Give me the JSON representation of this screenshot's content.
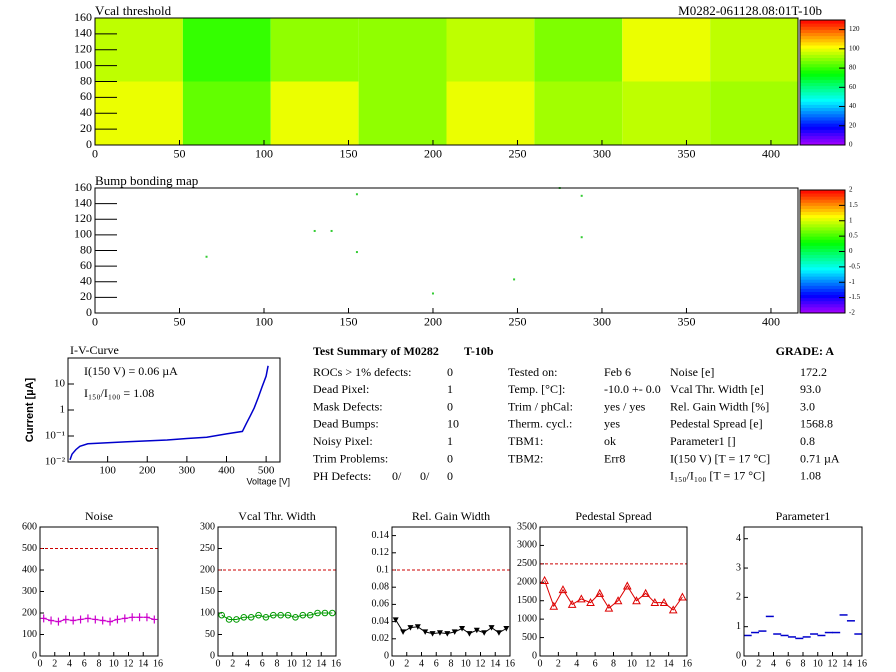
{
  "chart_data": [
    {
      "type": "heatmap",
      "title": "Vcal threshold",
      "subtitle": "M0282-061128.08:01T-10b",
      "xlim": [
        0,
        416
      ],
      "ylim": [
        0,
        160
      ],
      "xticks": [
        0,
        50,
        100,
        150,
        200,
        250,
        300,
        350,
        400
      ],
      "yticks": [
        0,
        20,
        40,
        60,
        80,
        100,
        120,
        140,
        160
      ],
      "zlim": [
        0,
        130
      ],
      "zticks": [
        0,
        20,
        40,
        60,
        80,
        100,
        120
      ],
      "cell_width": 52,
      "cell_height": 80,
      "cells": {
        "x": [
          0,
          52,
          104,
          156,
          208,
          260,
          312,
          364,
          0,
          52,
          104,
          156,
          208,
          260,
          312,
          364
        ],
        "y": [
          80,
          80,
          80,
          80,
          80,
          80,
          80,
          80,
          0,
          0,
          0,
          0,
          0,
          0,
          0,
          0
        ],
        "values": [
          95,
          80,
          90,
          90,
          95,
          88,
          100,
          95,
          100,
          85,
          100,
          90,
          100,
          92,
          95,
          92
        ]
      }
    },
    {
      "type": "scatter",
      "title": "Bump bonding map",
      "xlim": [
        0,
        416
      ],
      "ylim": [
        0,
        160
      ],
      "xticks": [
        0,
        50,
        100,
        150,
        200,
        250,
        300,
        350,
        400
      ],
      "yticks": [
        0,
        20,
        40,
        60,
        80,
        100,
        120,
        140,
        160
      ],
      "zlim": [
        -2,
        2
      ],
      "zticks": [
        -2,
        -1.5,
        -1,
        -0.5,
        0,
        0.5,
        1,
        1.5,
        2
      ],
      "color": "#33cc33",
      "x": [
        155,
        130,
        140,
        155,
        66,
        200,
        248,
        275,
        288,
        288
      ],
      "y": [
        152,
        105,
        105,
        78,
        72,
        25,
        43,
        160,
        150,
        97
      ]
    },
    {
      "type": "line",
      "title": "I-V-Curve",
      "xlabel": "Voltage [V]",
      "ylabel": "Current [µA]",
      "log_y": true,
      "color": "#0000cc",
      "annotations": [
        "I(150 V) = 0.06 µA",
        "I₁₅₀/I₁₀₀ =  1.08"
      ],
      "xlim": [
        0,
        535
      ],
      "ylim": [
        0.01,
        100
      ],
      "xticks": [
        100,
        200,
        300,
        400,
        500
      ],
      "yticks": [
        {
          "value": 0.01,
          "label": "10⁻²"
        },
        {
          "value": 0.1,
          "label": "10⁻¹"
        },
        1,
        10
      ],
      "x": [
        5,
        10,
        20,
        30,
        50,
        100,
        150,
        200,
        250,
        300,
        350,
        400,
        440,
        450,
        460,
        470,
        480,
        490,
        500,
        505
      ],
      "values": [
        0.012,
        0.02,
        0.03,
        0.04,
        0.05,
        0.055,
        0.06,
        0.065,
        0.07,
        0.08,
        0.09,
        0.12,
        0.15,
        0.3,
        0.6,
        1.2,
        3,
        8,
        20,
        50
      ]
    },
    {
      "type": "profile",
      "title": "Noise",
      "color": "#cc00cc",
      "marker": "plus",
      "connect": true,
      "threshold": 500,
      "xlim": [
        0,
        16
      ],
      "ylim": [
        0,
        600
      ],
      "xticks": [
        0,
        2,
        4,
        6,
        8,
        10,
        12,
        14,
        16
      ],
      "yticks": [
        0,
        100,
        200,
        300,
        400,
        500,
        600
      ],
      "values": [
        175,
        165,
        160,
        170,
        165,
        170,
        175,
        170,
        165,
        160,
        170,
        175,
        180,
        180,
        180,
        170
      ]
    },
    {
      "type": "profile",
      "title": "Vcal Thr. Width",
      "color": "#009900",
      "marker": "circle",
      "connect": true,
      "threshold": 200,
      "xlim": [
        0,
        16
      ],
      "ylim": [
        0,
        300
      ],
      "xticks": [
        0,
        2,
        4,
        6,
        8,
        10,
        12,
        14,
        16
      ],
      "yticks": [
        0,
        50,
        100,
        150,
        200,
        250,
        300
      ],
      "values": [
        95,
        85,
        85,
        90,
        90,
        95,
        90,
        95,
        95,
        95,
        90,
        95,
        95,
        100,
        100,
        100
      ]
    },
    {
      "type": "profile",
      "title": "Rel. Gain Width",
      "color": "#000000",
      "marker": "triangle-down",
      "connect": true,
      "threshold": 0.1,
      "xlim": [
        0,
        16
      ],
      "ylim": [
        0,
        0.15
      ],
      "xticks": [
        0,
        2,
        4,
        6,
        8,
        10,
        12,
        14,
        16
      ],
      "yticks": [
        0,
        0.02,
        0.04,
        0.06,
        0.08,
        0.1,
        0.12,
        0.14
      ],
      "values": [
        0.042,
        0.028,
        0.033,
        0.034,
        0.028,
        0.026,
        0.027,
        0.026,
        0.028,
        0.032,
        0.026,
        0.03,
        0.027,
        0.033,
        0.027,
        0.032
      ]
    },
    {
      "type": "profile",
      "title": "Pedestal Spread",
      "color": "#dd0000",
      "marker": "triangle-up",
      "connect": true,
      "threshold": 2500,
      "xlim": [
        0,
        16
      ],
      "ylim": [
        0,
        3500
      ],
      "xticks": [
        0,
        2,
        4,
        6,
        8,
        10,
        12,
        14,
        16
      ],
      "yticks": [
        0,
        500,
        1000,
        1500,
        2000,
        2500,
        3000,
        3500
      ],
      "values": [
        2050,
        1350,
        1800,
        1400,
        1550,
        1450,
        1700,
        1300,
        1500,
        1900,
        1500,
        1700,
        1450,
        1450,
        1250,
        1600
      ]
    },
    {
      "type": "profile",
      "title": "Parameter1",
      "color": "#0000cc",
      "marker": "dash",
      "connect": false,
      "xlim": [
        0,
        16
      ],
      "ylim": [
        0,
        4.4
      ],
      "xticks": [
        0,
        2,
        4,
        6,
        8,
        10,
        12,
        14,
        16
      ],
      "yticks": [
        0,
        1,
        2,
        3,
        4
      ],
      "values": [
        0.7,
        0.8,
        0.85,
        1.35,
        0.75,
        0.7,
        0.65,
        0.6,
        0.65,
        0.75,
        0.7,
        0.8,
        0.8,
        1.4,
        1.2,
        0.75
      ]
    }
  ],
  "summary": {
    "title": "Test Summary of M0282",
    "module": "T-10b",
    "grade": "GRADE:  A",
    "defects": [
      [
        "ROCs > 1% defects:",
        "0"
      ],
      [
        "Dead Pixel:",
        "1"
      ],
      [
        "Mask Defects:",
        "0"
      ],
      [
        "Dead Bumps:",
        "10"
      ],
      [
        "Noisy Pixel:",
        "1"
      ],
      [
        "Trim Problems:",
        "0"
      ]
    ],
    "ph_defects": {
      "label": "PH Defects:",
      "values": [
        "0/",
        "0/",
        "0"
      ]
    },
    "conditions": [
      [
        "Tested on:",
        "Feb 6"
      ],
      [
        "Temp. [°C]:",
        "-10.0 +- 0.0"
      ],
      [
        "Trim / phCal:",
        "yes / yes"
      ],
      [
        "Therm. cycl.:",
        "yes"
      ],
      [
        "TBM1:",
        "ok"
      ],
      [
        "TBM2:",
        "Err8"
      ]
    ],
    "results": [
      [
        "Noise [e]",
        "172.2"
      ],
      [
        "Vcal Thr. Width [e]",
        "93.0"
      ],
      [
        "Rel. Gain Width [%]",
        "3.0"
      ],
      [
        "Pedestal Spread [e]",
        "1568.8"
      ],
      [
        "Parameter1 []",
        "0.8"
      ],
      [
        "I(150 V) [T = 17 °C]",
        "0.71 µA"
      ],
      [
        "I₁₅₀/I₁₀₀  [T = 17 °C]",
        "1.08"
      ]
    ]
  }
}
